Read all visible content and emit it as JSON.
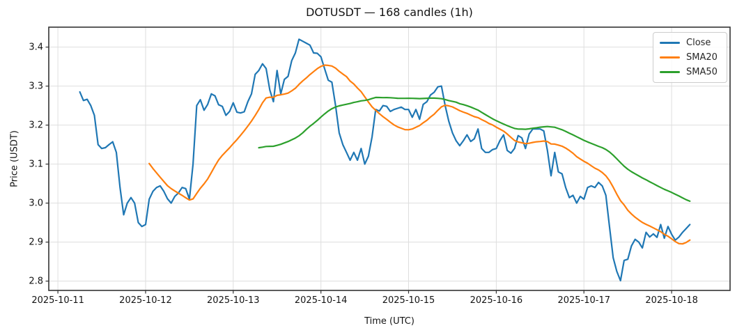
{
  "chart_data": {
    "type": "line",
    "title": "DOTUSDT — 168 candles (1h)",
    "xlabel": "Time (UTC)",
    "ylabel": "Price (USDT)",
    "num_candles": 168,
    "interval": "1h",
    "x_start_utc": "2025-10-11 06:00",
    "x_start_hour_offset": 6,
    "x_tick_labels": [
      "2025-10-11",
      "2025-10-12",
      "2025-10-13",
      "2025-10-14",
      "2025-10-15",
      "2025-10-16",
      "2025-10-17",
      "2025-10-18"
    ],
    "x_tick_step_hours": 24,
    "y_ticks": [
      2.8,
      2.9,
      3.0,
      3.1,
      3.2,
      3.3,
      3.4
    ],
    "ylim": [
      2.776,
      3.451
    ],
    "grid": true,
    "legend_position": "upper right",
    "colors": {
      "close": "#1f77b4",
      "sma20": "#ff7f0e",
      "sma50": "#2ca02c"
    },
    "series": [
      {
        "name": "Close",
        "color": "#1f77b4",
        "values": [
          3.285,
          3.263,
          3.266,
          3.25,
          3.225,
          3.15,
          3.14,
          3.142,
          3.15,
          3.157,
          3.13,
          3.04,
          2.97,
          3.0,
          3.014,
          3.0,
          2.95,
          2.94,
          2.945,
          3.01,
          3.03,
          3.04,
          3.044,
          3.03,
          3.011,
          3.0,
          3.017,
          3.026,
          3.04,
          3.037,
          3.01,
          3.1,
          3.25,
          3.265,
          3.238,
          3.253,
          3.28,
          3.275,
          3.252,
          3.248,
          3.225,
          3.235,
          3.257,
          3.233,
          3.231,
          3.234,
          3.26,
          3.28,
          3.33,
          3.34,
          3.357,
          3.345,
          3.29,
          3.26,
          3.34,
          3.28,
          3.317,
          3.325,
          3.365,
          3.385,
          3.42,
          3.415,
          3.41,
          3.405,
          3.385,
          3.384,
          3.375,
          3.345,
          3.315,
          3.31,
          3.25,
          3.18,
          3.15,
          3.13,
          3.11,
          3.13,
          3.11,
          3.14,
          3.1,
          3.12,
          3.17,
          3.24,
          3.236,
          3.25,
          3.248,
          3.235,
          3.24,
          3.243,
          3.246,
          3.24,
          3.24,
          3.22,
          3.24,
          3.215,
          3.253,
          3.26,
          3.277,
          3.284,
          3.298,
          3.3,
          3.25,
          3.21,
          3.18,
          3.16,
          3.147,
          3.16,
          3.175,
          3.158,
          3.165,
          3.19,
          3.14,
          3.13,
          3.13,
          3.137,
          3.14,
          3.16,
          3.175,
          3.135,
          3.128,
          3.14,
          3.173,
          3.167,
          3.14,
          3.177,
          3.19,
          3.19,
          3.19,
          3.185,
          3.135,
          3.07,
          3.13,
          3.08,
          3.075,
          3.04,
          3.014,
          3.02,
          3.0,
          3.017,
          3.01,
          3.04,
          3.044,
          3.04,
          3.053,
          3.044,
          3.02,
          2.94,
          2.86,
          2.825,
          2.801,
          2.853,
          2.856,
          2.89,
          2.907,
          2.9,
          2.885,
          2.925,
          2.913,
          2.921,
          2.912,
          2.945,
          2.91,
          2.94,
          2.92,
          2.905,
          2.913,
          2.925,
          2.935,
          2.945
        ]
      },
      {
        "name": "SMA20",
        "color": "#ff7f0e",
        "derived": "sma_of_close",
        "window": 20
      },
      {
        "name": "SMA50",
        "color": "#2ca02c",
        "derived": "sma_of_close",
        "window": 50
      }
    ]
  }
}
